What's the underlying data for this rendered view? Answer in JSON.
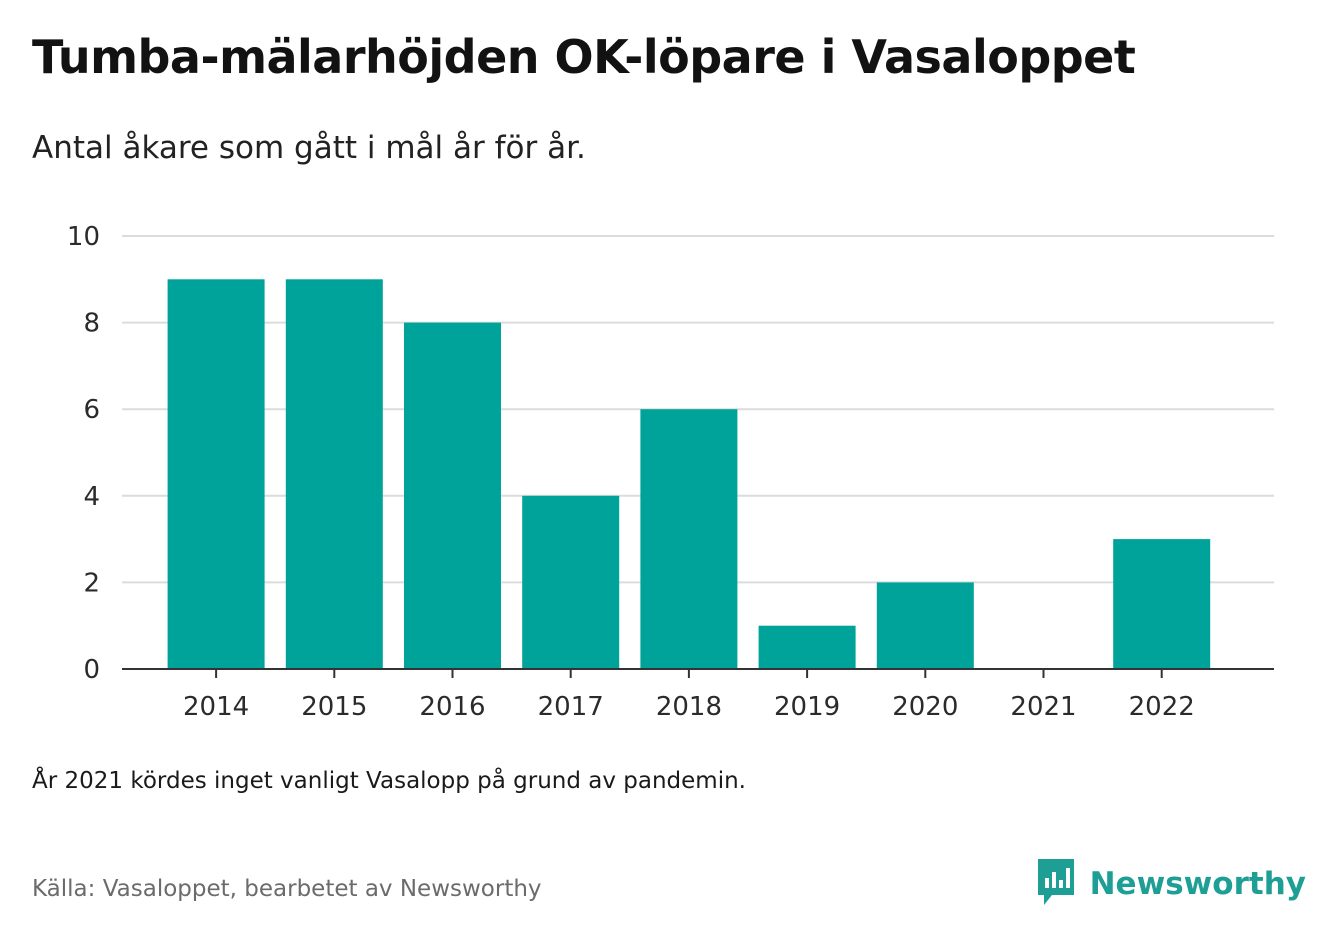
{
  "title": "Tumba-mälarhöjden OK-löpare i Vasaloppet",
  "subtitle": "Antal åkare som gått i mål år för år.",
  "note": "År 2021 kördes inget vanligt Vasalopp på grund av pandemin.",
  "source": "Källa: Vasaloppet, bearbetet av Newsworthy",
  "brand": {
    "name": "Newsworthy",
    "icon": "newsworthy-logo-icon",
    "color": "#1e9f96"
  },
  "chart_data": {
    "type": "bar",
    "categories": [
      "2014",
      "2015",
      "2016",
      "2017",
      "2018",
      "2019",
      "2020",
      "2021",
      "2022"
    ],
    "values": [
      9,
      9,
      8,
      4,
      6,
      1,
      2,
      0,
      3
    ],
    "ylim": [
      0,
      10
    ],
    "yticks": [
      0,
      2,
      4,
      6,
      8,
      10
    ],
    "bar_color": "#00a39a",
    "grid": true
  }
}
